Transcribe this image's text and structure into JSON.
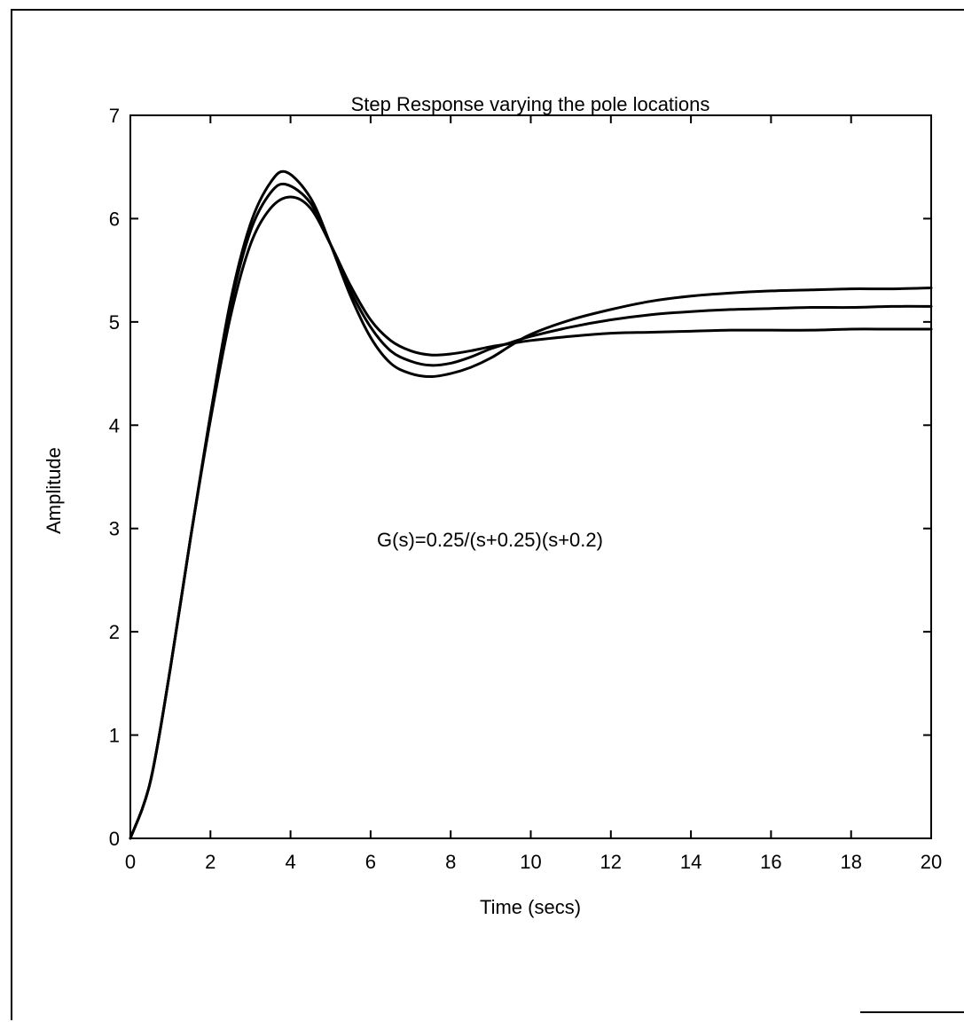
{
  "chart_data": {
    "type": "line",
    "title": "Step Response varying the pole locations",
    "xlabel": "Time (secs)",
    "ylabel": "Amplitude",
    "xlim": [
      0,
      20
    ],
    "ylim": [
      0,
      7
    ],
    "xticks": [
      "0",
      "2",
      "4",
      "6",
      "8",
      "10",
      "12",
      "14",
      "16",
      "18",
      "20"
    ],
    "yticks": [
      "0",
      "1",
      "2",
      "3",
      "4",
      "5",
      "6",
      "7"
    ],
    "grid": false,
    "annotation": "G(s)=0.25/(s+0.25)(s+0.2)",
    "line_color": "#000000",
    "series": [
      {
        "x": [
          0,
          0.5,
          1,
          1.5,
          2,
          2.5,
          3,
          3.5,
          3.9,
          4.5,
          5,
          5.5,
          6,
          6.5,
          7,
          7.5,
          8,
          8.5,
          9,
          9.5,
          10,
          11,
          12,
          13,
          14,
          15,
          16,
          17,
          18,
          19,
          20
        ],
        "y": [
          0,
          0.55,
          1.65,
          2.9,
          4.1,
          5.2,
          5.95,
          6.35,
          6.45,
          6.2,
          5.75,
          5.25,
          4.85,
          4.6,
          4.5,
          4.47,
          4.5,
          4.56,
          4.65,
          4.77,
          4.88,
          5.02,
          5.12,
          5.2,
          5.25,
          5.28,
          5.3,
          5.31,
          5.32,
          5.32,
          5.33
        ]
      },
      {
        "x": [
          0,
          0.5,
          1,
          1.5,
          2,
          2.5,
          3,
          3.5,
          3.9,
          4.5,
          5,
          5.5,
          6,
          6.5,
          7,
          7.5,
          8,
          8.5,
          9,
          9.5,
          10,
          11,
          12,
          13,
          14,
          15,
          16,
          17,
          18,
          19,
          20
        ],
        "y": [
          0,
          0.55,
          1.65,
          2.9,
          4.1,
          5.15,
          5.88,
          6.25,
          6.33,
          6.15,
          5.75,
          5.3,
          4.95,
          4.72,
          4.62,
          4.58,
          4.6,
          4.66,
          4.74,
          4.8,
          4.86,
          4.95,
          5.02,
          5.07,
          5.1,
          5.12,
          5.13,
          5.14,
          5.14,
          5.15,
          5.15
        ]
      },
      {
        "x": [
          0,
          0.5,
          1,
          1.5,
          2,
          2.5,
          3,
          3.5,
          4,
          4.5,
          5,
          5.5,
          6,
          6.5,
          7,
          7.5,
          8,
          8.5,
          9,
          9.5,
          10,
          11,
          12,
          13,
          14,
          15,
          16,
          17,
          18,
          19,
          20
        ],
        "y": [
          0,
          0.55,
          1.65,
          2.9,
          4.05,
          5.05,
          5.75,
          6.1,
          6.21,
          6.1,
          5.75,
          5.35,
          5.02,
          4.82,
          4.72,
          4.68,
          4.69,
          4.72,
          4.76,
          4.79,
          4.82,
          4.86,
          4.89,
          4.9,
          4.91,
          4.92,
          4.92,
          4.92,
          4.93,
          4.93,
          4.93
        ]
      }
    ]
  }
}
